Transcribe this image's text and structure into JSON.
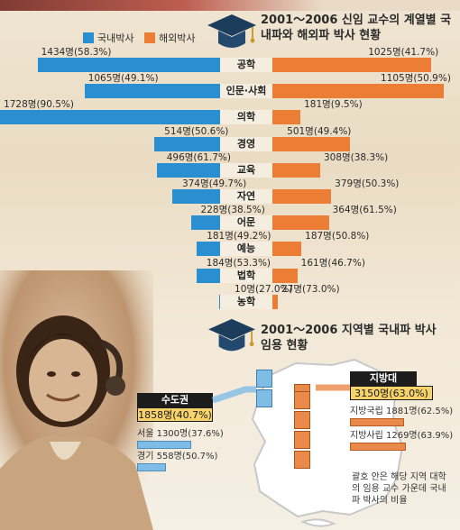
{
  "chart_data": [
    {
      "type": "bar",
      "title": "2001～2006 신임 교수의 계열별 국내파와 해외파 박사 현황",
      "series": [
        {
          "name": "국내박사",
          "color": "#2a8fd1",
          "values": [
            1434,
            1065,
            1728,
            514,
            496,
            374,
            228,
            181,
            184,
            10
          ],
          "labels": [
            "1434명(58.3%)",
            "1065명(49.1%)",
            "1728명(90.5%)",
            "514명(50.6%)",
            "496명(61.7%)",
            "374명(49.7%)",
            "228명(38.5%)",
            "181명(49.2%)",
            "184명(53.3%)",
            "10명(27.0%)"
          ]
        },
        {
          "name": "해외박사",
          "color": "#ec7d34",
          "values": [
            1025,
            1105,
            181,
            501,
            308,
            379,
            364,
            187,
            161,
            27
          ],
          "labels": [
            "1025명(41.7%)",
            "1105명(50.9%)",
            "181명(9.5%)",
            "501명(49.4%)",
            "308명(38.3%)",
            "379명(50.3%)",
            "364명(61.5%)",
            "187명(50.8%)",
            "161명(46.7%)",
            "27명(73.0%)"
          ]
        }
      ],
      "categories": [
        "공학",
        "인문·사회",
        "의학",
        "경영",
        "교육",
        "자연",
        "어문",
        "예능",
        "법학",
        "농학"
      ]
    },
    {
      "type": "bar",
      "title": "2001～2006 지역별 국내파 박사 임용 현황",
      "regions": [
        {
          "name": "수도권",
          "total": "1858명(40.7%)",
          "items": [
            {
              "label": "서울 1300명(37.6%)",
              "pct": 37.6
            },
            {
              "label": "경기 558명(50.7%)",
              "pct": 50.7
            }
          ]
        },
        {
          "name": "지방대",
          "total": "3150명(63.0%)",
          "items": [
            {
              "label": "지방국립 1881명(62.5%)",
              "pct": 62.5
            },
            {
              "label": "지방사립 1269명(63.9%)",
              "pct": 63.9
            }
          ]
        }
      ],
      "note": "괄호 안은 해당 지역 대학의 임용 교수 가운데 국내파 박사의 비율"
    }
  ],
  "colors": {
    "domestic": "#2a8fd1",
    "overseas": "#ec7d34",
    "box_dark": "#1c1c1c",
    "box_yellow": "#f6d26a",
    "map_blue": "#7fbde6",
    "map_orange": "#e98a4a"
  },
  "icons": [
    "mortarboard-icon",
    "mortarboard-icon-2",
    "korea-map-icon"
  ]
}
